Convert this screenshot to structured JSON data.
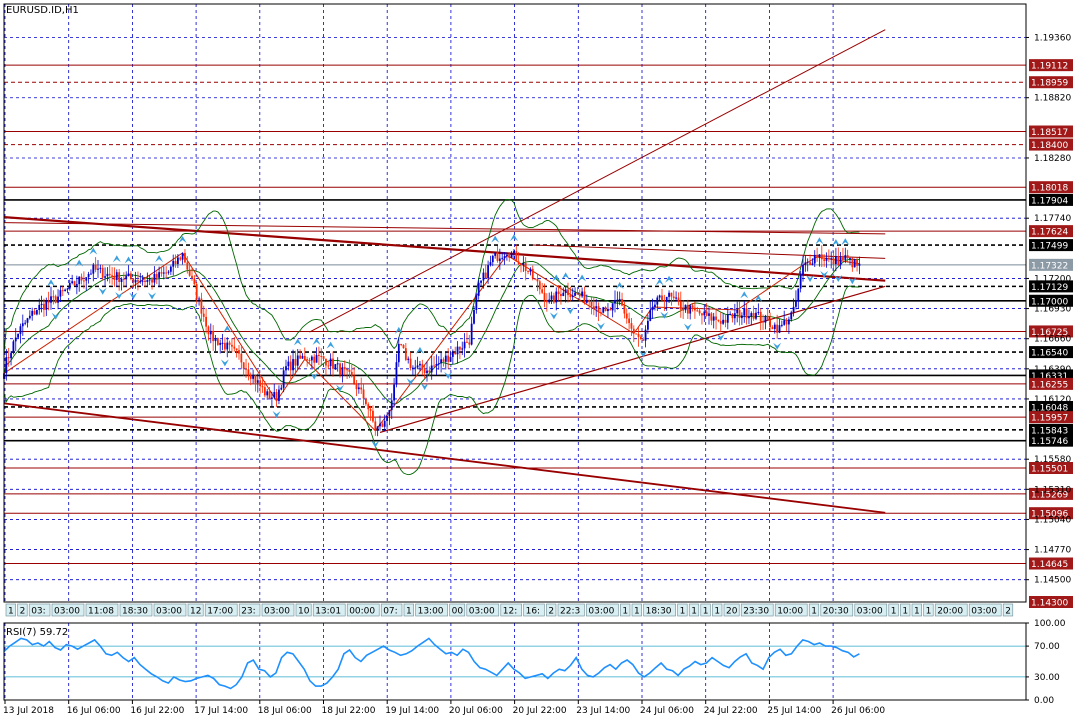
{
  "window_title": "EURUSD.ID,H1",
  "colors": {
    "background": "#ffffff",
    "grid": "#0000cc",
    "candle_up": "#0000cc",
    "candle_down": "#ff2a00",
    "bollinger": "#006600",
    "trendline": "#990000",
    "level": "#990000",
    "rsi": "#1e90ff",
    "fractal": "#3aa0e0",
    "box_dark": "#000000",
    "box_red": "#a01818",
    "box_grey": "#8c9aa6"
  },
  "chart_data": [
    {
      "type": "candlestick",
      "title": "EURUSD.ID,H1",
      "symbol": "EURUSD.ID",
      "timeframe": "H1",
      "ylim": [
        1.143,
        1.1966
      ],
      "grid": true,
      "x_ticks": [
        "13 Jul 2018",
        "16 Jul 06:00",
        "16 Jul 22:00",
        "17 Jul 14:00",
        "18 Jul 06:00",
        "18 Jul 22:00",
        "19 Jul 14:00",
        "20 Jul 06:00",
        "20 Jul 22:00",
        "23 Jul 14:00",
        "24 Jul 06:00",
        "24 Jul 22:00",
        "25 Jul 14:00",
        "26 Jul 06:00"
      ],
      "y_ticks": [
        "1.19360",
        "1.18820",
        "1.18280",
        "1.17740",
        "1.17200",
        "1.16930",
        "1.16660",
        "1.16390",
        "1.16120",
        "1.15580",
        "1.15310",
        "1.15040",
        "1.14770",
        "1.14500"
      ],
      "price_levels": [
        {
          "label": "1.19112",
          "value": 1.19112,
          "style": "red"
        },
        {
          "label": "1.18959",
          "value": 1.18959,
          "style": "red"
        },
        {
          "label": "1.18517",
          "value": 1.18517,
          "style": "red"
        },
        {
          "label": "1.18400",
          "value": 1.184,
          "style": "red"
        },
        {
          "label": "1.18018",
          "value": 1.18018,
          "style": "red"
        },
        {
          "label": "1.17904",
          "value": 1.17904,
          "style": "dark"
        },
        {
          "label": "1.17624",
          "value": 1.17624,
          "style": "red"
        },
        {
          "label": "1.17499",
          "value": 1.17499,
          "style": "dark"
        },
        {
          "label": "1.17322",
          "value": 1.17322,
          "style": "grey"
        },
        {
          "label": "1.17129",
          "value": 1.17129,
          "style": "dark"
        },
        {
          "label": "1.17000",
          "value": 1.17,
          "style": "dark"
        },
        {
          "label": "1.16725",
          "value": 1.16725,
          "style": "red"
        },
        {
          "label": "1.16540",
          "value": 1.1654,
          "style": "dark"
        },
        {
          "label": "1.16331",
          "value": 1.16331,
          "style": "dark"
        },
        {
          "label": "1.16255",
          "value": 1.16255,
          "style": "red"
        },
        {
          "label": "1.16048",
          "value": 1.16048,
          "style": "dark"
        },
        {
          "label": "1.15957",
          "value": 1.15957,
          "style": "red"
        },
        {
          "label": "1.15843",
          "value": 1.15843,
          "style": "dark"
        },
        {
          "label": "1.15746",
          "value": 1.15746,
          "style": "dark"
        },
        {
          "label": "1.15501",
          "value": 1.15501,
          "style": "red"
        },
        {
          "label": "1.15269",
          "value": 1.15269,
          "style": "red"
        },
        {
          "label": "1.15096",
          "value": 1.15096,
          "style": "red"
        },
        {
          "label": "1.14645",
          "value": 1.14645,
          "style": "red"
        },
        {
          "label": "1.14300",
          "value": 1.143,
          "style": "red"
        }
      ],
      "close_path": [
        [
          0,
          1.164
        ],
        [
          6,
          1.1672
        ],
        [
          14,
          1.1693
        ],
        [
          22,
          1.1702
        ],
        [
          30,
          1.1715
        ],
        [
          38,
          1.1728
        ],
        [
          46,
          1.1722
        ],
        [
          54,
          1.172
        ],
        [
          62,
          1.1718
        ],
        [
          70,
          1.1726
        ],
        [
          76,
          1.1742
        ],
        [
          82,
          1.1705
        ],
        [
          88,
          1.1668
        ],
        [
          94,
          1.166
        ],
        [
          100,
          1.165
        ],
        [
          106,
          1.1632
        ],
        [
          112,
          1.1615
        ],
        [
          116,
          1.1614
        ],
        [
          120,
          1.164
        ],
        [
          128,
          1.165
        ],
        [
          136,
          1.1648
        ],
        [
          142,
          1.164
        ],
        [
          148,
          1.163
        ],
        [
          154,
          1.161
        ],
        [
          158,
          1.1585
        ],
        [
          162,
          1.159
        ],
        [
          166,
          1.162
        ],
        [
          168,
          1.166
        ],
        [
          174,
          1.164
        ],
        [
          180,
          1.1638
        ],
        [
          186,
          1.1645
        ],
        [
          192,
          1.1655
        ],
        [
          198,
          1.1665
        ],
        [
          202,
          1.1712
        ],
        [
          208,
          1.1738
        ],
        [
          214,
          1.1745
        ],
        [
          220,
          1.1735
        ],
        [
          226,
          1.1718
        ],
        [
          232,
          1.1698
        ],
        [
          238,
          1.171
        ],
        [
          244,
          1.1705
        ],
        [
          250,
          1.17
        ],
        [
          256,
          1.1688
        ],
        [
          262,
          1.17
        ],
        [
          268,
          1.167
        ],
        [
          272,
          1.1662
        ],
        [
          276,
          1.1695
        ],
        [
          282,
          1.1705
        ],
        [
          288,
          1.1695
        ],
        [
          294,
          1.169
        ],
        [
          300,
          1.1685
        ],
        [
          306,
          1.1682
        ],
        [
          312,
          1.1688
        ],
        [
          318,
          1.169
        ],
        [
          324,
          1.1682
        ],
        [
          330,
          1.1675
        ],
        [
          336,
          1.169
        ],
        [
          340,
          1.173
        ],
        [
          346,
          1.1742
        ],
        [
          352,
          1.1735
        ],
        [
          358,
          1.1738
        ],
        [
          364,
          1.173
        ]
      ],
      "candles_per_day": 24,
      "series": [
        {
          "name": "RSI(7) 59.72",
          "indicator": "rsi"
        }
      ],
      "session_strip": [
        "1",
        "2",
        "03:",
        "03:00",
        "11:08",
        "18:30",
        "03:00",
        "12",
        "17:00",
        "23:",
        "03:00",
        "10",
        "13:01",
        "00:00",
        "07:",
        "1",
        "13:00",
        "00",
        "03:00",
        "12:",
        "16:",
        "2",
        "22:3",
        "03:00",
        "1",
        "1",
        "18:30",
        "1",
        "1",
        "1",
        "1",
        "20",
        "23:30",
        "10:00",
        "1",
        "20:30",
        "03:00",
        "1",
        "1",
        "1",
        "1",
        "20:00",
        "03:00",
        "09:",
        "13:00",
        "2",
        "22:30"
      ]
    },
    {
      "type": "line",
      "title": "RSI(7) 59.72",
      "ylim": [
        0,
        100
      ],
      "y_ticks": [
        "100.00",
        "70.00",
        "30.00",
        "0.00"
      ],
      "levels": [
        70,
        30
      ],
      "values": [
        63,
        70,
        75,
        80,
        78,
        72,
        74,
        70,
        76,
        68,
        65,
        72,
        70,
        66,
        70,
        74,
        78,
        70,
        60,
        58,
        62,
        55,
        50,
        55,
        46,
        40,
        34,
        30,
        25,
        22,
        30,
        26,
        24,
        25,
        28,
        30,
        32,
        28,
        20,
        18,
        15,
        20,
        30,
        48,
        52,
        40,
        38,
        30,
        35,
        55,
        62,
        60,
        50,
        40,
        25,
        18,
        18,
        22,
        30,
        40,
        60,
        65,
        55,
        50,
        58,
        62,
        66,
        70,
        65,
        62,
        58,
        60,
        64,
        70,
        75,
        80,
        72,
        66,
        60,
        62,
        58,
        66,
        62,
        50,
        42,
        40,
        36,
        32,
        40,
        48,
        40,
        35,
        28,
        30,
        32,
        34,
        28,
        35,
        40,
        38,
        45,
        55,
        40,
        32,
        30,
        35,
        42,
        46,
        40,
        48,
        52,
        46,
        35,
        30,
        35,
        42,
        48,
        40,
        38,
        32,
        40,
        44,
        50,
        46,
        48,
        55,
        50,
        45,
        42,
        50,
        56,
        60,
        48,
        45,
        40,
        55,
        62,
        66,
        58,
        60,
        70,
        78,
        76,
        72,
        74,
        70,
        70,
        68,
        64,
        62,
        56,
        60
      ]
    }
  ]
}
